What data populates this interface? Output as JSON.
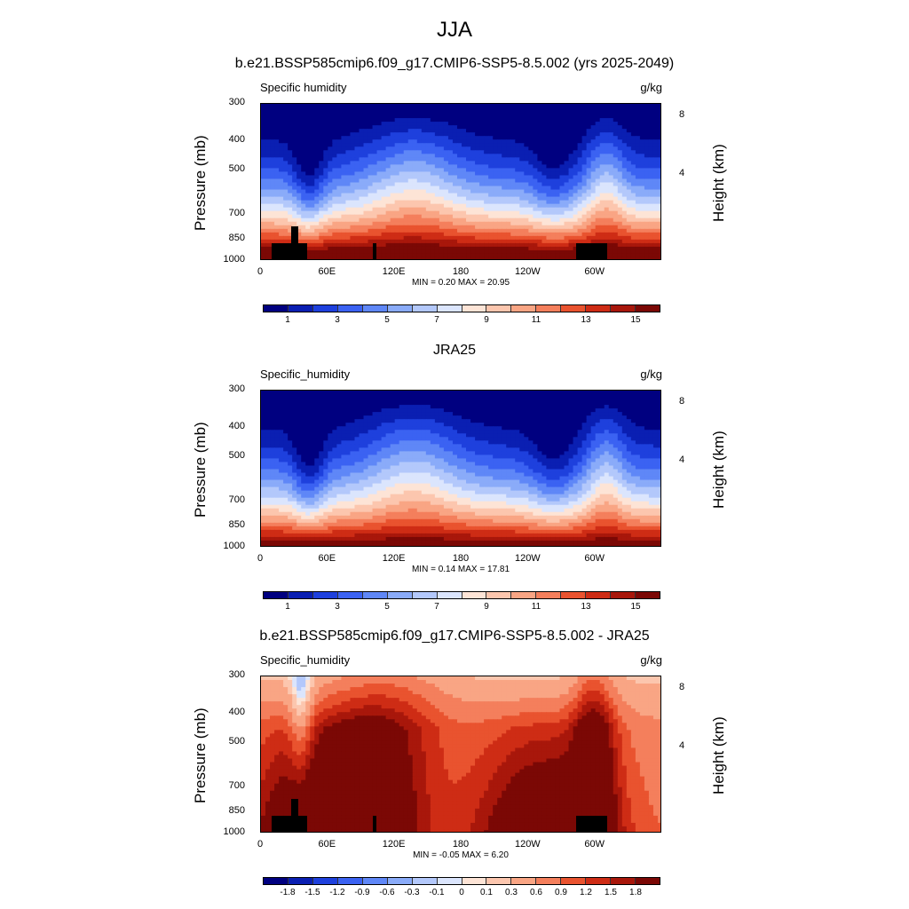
{
  "page_title": "JJA",
  "colors": {
    "palette": [
      "#000080",
      "#0a1fb2",
      "#1e40dd",
      "#3b62f2",
      "#5f87f7",
      "#8aabf9",
      "#b3c8fb",
      "#dbe5fd",
      "#fde4d6",
      "#fcc6ae",
      "#f9a584",
      "#f47f5c",
      "#e9532f",
      "#ce2c15",
      "#a8170b",
      "#7b0805"
    ],
    "land": "#000000"
  },
  "panels": [
    {
      "title": "b.e21.BSSP585cmip6.f09_g17.CMIP6-SSP5-8.5.002 (yrs 2025-2049)",
      "var_name": "Specific humidity",
      "units": "g/kg",
      "ylabel": "Pressure (mb)",
      "ylabel_right": "Height (km)",
      "p_ticks": [
        "300",
        "400",
        "500",
        "700",
        "850",
        "1000"
      ],
      "h_ticks": [
        "8",
        "4"
      ],
      "x_ticks": [
        "0",
        "60E",
        "120E",
        "180",
        "120W",
        "60W"
      ],
      "minmax": "MIN =   0.20  MAX =  20.95",
      "colorbar_labels": [
        "1",
        "3",
        "5",
        "7",
        "9",
        "11",
        "13",
        "15"
      ]
    },
    {
      "title": "JRA25",
      "var_name": "Specific_humidity",
      "units": "g/kg",
      "ylabel": "Pressure (mb)",
      "ylabel_right": "Height (km)",
      "p_ticks": [
        "300",
        "400",
        "500",
        "700",
        "850",
        "1000"
      ],
      "h_ticks": [
        "8",
        "4"
      ],
      "x_ticks": [
        "0",
        "60E",
        "120E",
        "180",
        "120W",
        "60W"
      ],
      "minmax": "MIN =   0.14  MAX =  17.81",
      "colorbar_labels": [
        "1",
        "3",
        "5",
        "7",
        "9",
        "11",
        "13",
        "15"
      ]
    },
    {
      "title": "b.e21.BSSP585cmip6.f09_g17.CMIP6-SSP5-8.5.002 - JRA25",
      "var_name": "Specific_humidity",
      "units": "g/kg",
      "ylabel": "Pressure (mb)",
      "ylabel_right": "Height (km)",
      "p_ticks": [
        "300",
        "400",
        "500",
        "700",
        "850",
        "1000"
      ],
      "h_ticks": [
        "8",
        "4"
      ],
      "x_ticks": [
        "0",
        "60E",
        "120E",
        "180",
        "120W",
        "60W"
      ],
      "minmax": "MIN =  -0.05  MAX =   6.20",
      "colorbar_labels": [
        "-1.8",
        "-1.5",
        "-1.2",
        "-0.9",
        "-0.6",
        "-0.3",
        "-0.1",
        "0",
        "0.1",
        "0.3",
        "0.6",
        "0.9",
        "1.2",
        "1.5",
        "1.8"
      ]
    }
  ],
  "chart_data": [
    {
      "type": "heatmap",
      "title": "b.e21.BSSP585cmip6.f09_g17.CMIP6-SSP5-8.5.002 (yrs 2025-2049)",
      "variable": "Specific humidity",
      "units": "g/kg",
      "x": "longitude 0–360",
      "y": "pressure (mb), 1000 to 300",
      "levels": [
        1,
        2,
        3,
        4,
        5,
        6,
        7,
        8,
        9,
        10,
        11,
        12,
        13,
        14,
        15
      ],
      "min": 0.2,
      "max": 20.95,
      "profile_pressures": [
        1000,
        850,
        700,
        500,
        400,
        300
      ],
      "approx_profile_values": [
        15.5,
        10.5,
        7.5,
        3,
        1.5,
        0.5
      ]
    },
    {
      "type": "heatmap",
      "title": "JRA25",
      "variable": "Specific_humidity",
      "units": "g/kg",
      "x": "longitude 0–360",
      "y": "pressure (mb), 1000 to 300",
      "levels": [
        1,
        2,
        3,
        4,
        5,
        6,
        7,
        8,
        9,
        10,
        11,
        12,
        13,
        14,
        15
      ],
      "min": 0.14,
      "max": 17.81,
      "profile_pressures": [
        1000,
        850,
        700,
        500,
        400,
        300
      ],
      "approx_profile_values": [
        14,
        9.5,
        6.5,
        2.5,
        1,
        0.4
      ]
    },
    {
      "type": "heatmap",
      "title": "b.e21.BSSP585cmip6.f09_g17.CMIP6-SSP5-8.5.002 - JRA25",
      "variable": "Specific_humidity",
      "units": "g/kg",
      "x": "longitude 0–360",
      "y": "pressure (mb), 1000 to 300",
      "levels": [
        -1.8,
        -1.5,
        -1.2,
        -0.9,
        -0.6,
        -0.3,
        -0.1,
        0,
        0.1,
        0.3,
        0.6,
        0.9,
        1.2,
        1.5,
        1.8
      ],
      "min": -0.05,
      "max": 6.2
    }
  ]
}
